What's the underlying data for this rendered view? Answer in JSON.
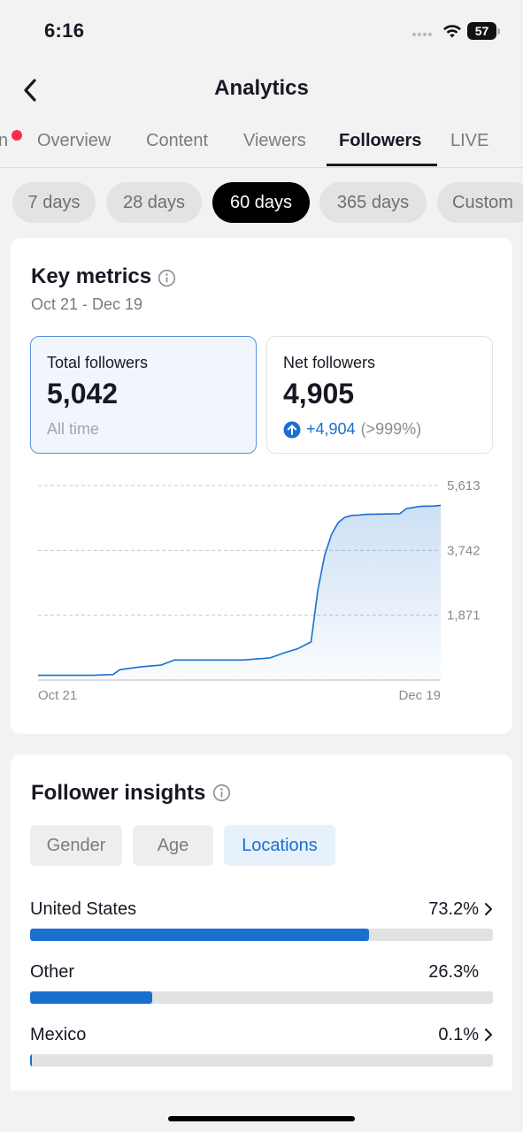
{
  "status_bar": {
    "time": "6:16",
    "battery": "57"
  },
  "header": {
    "title": "Analytics",
    "back_icon": "chevron-left-icon"
  },
  "tabs": [
    {
      "label": "n",
      "has_notification": true
    },
    {
      "label": "Overview"
    },
    {
      "label": "Content"
    },
    {
      "label": "Viewers"
    },
    {
      "label": "Followers",
      "active": true
    },
    {
      "label": "LIVE"
    }
  ],
  "time_filters": [
    {
      "label": "7 days"
    },
    {
      "label": "28 days"
    },
    {
      "label": "60 days",
      "active": true
    },
    {
      "label": "365 days"
    },
    {
      "label": "Custom"
    }
  ],
  "key_metrics": {
    "title": "Key metrics",
    "date_range": "Oct 21 - Dec 19",
    "total_followers": {
      "label": "Total followers",
      "value": "5,042",
      "sub": "All time",
      "selected": true
    },
    "net_followers": {
      "label": "Net followers",
      "value": "4,905",
      "change": "+4,904",
      "change_pct": "(>999%)"
    }
  },
  "chart_data": {
    "type": "area",
    "title": "",
    "x_start_label": "Oct 21",
    "x_end_label": "Dec 19",
    "y_ticks": [
      "5,613",
      "3,742",
      "1,871"
    ],
    "ylim": [
      0,
      5613
    ],
    "grid": true,
    "color": "#1a6fcf",
    "x": [
      0,
      4,
      8,
      11,
      12,
      15,
      18,
      20,
      22,
      26,
      30,
      34,
      36,
      38,
      40,
      41,
      42,
      43,
      44,
      45,
      46,
      47,
      48,
      50,
      53,
      54,
      56,
      58,
      59
    ],
    "values": [
      137,
      137,
      137,
      160,
      300,
      380,
      430,
      580,
      580,
      580,
      580,
      640,
      780,
      900,
      1100,
      2600,
      3600,
      4200,
      4550,
      4700,
      4750,
      4760,
      4780,
      4790,
      4800,
      4950,
      5010,
      5020,
      5042
    ]
  },
  "follower_insights": {
    "title": "Follower insights",
    "segments": [
      {
        "label": "Gender"
      },
      {
        "label": "Age"
      },
      {
        "label": "Locations",
        "active": true
      }
    ],
    "locations": [
      {
        "name": "United States",
        "pct": "73.2%",
        "value": 73.2,
        "chevron": true
      },
      {
        "name": "Other",
        "pct": "26.3%",
        "value": 26.3,
        "chevron": false
      },
      {
        "name": "Mexico",
        "pct": "0.1%",
        "value": 0.1,
        "chevron": true
      }
    ]
  },
  "colors": {
    "accent": "#1a6fcf",
    "notification": "#fe2c55",
    "selected_border": "#5a8fdf"
  }
}
